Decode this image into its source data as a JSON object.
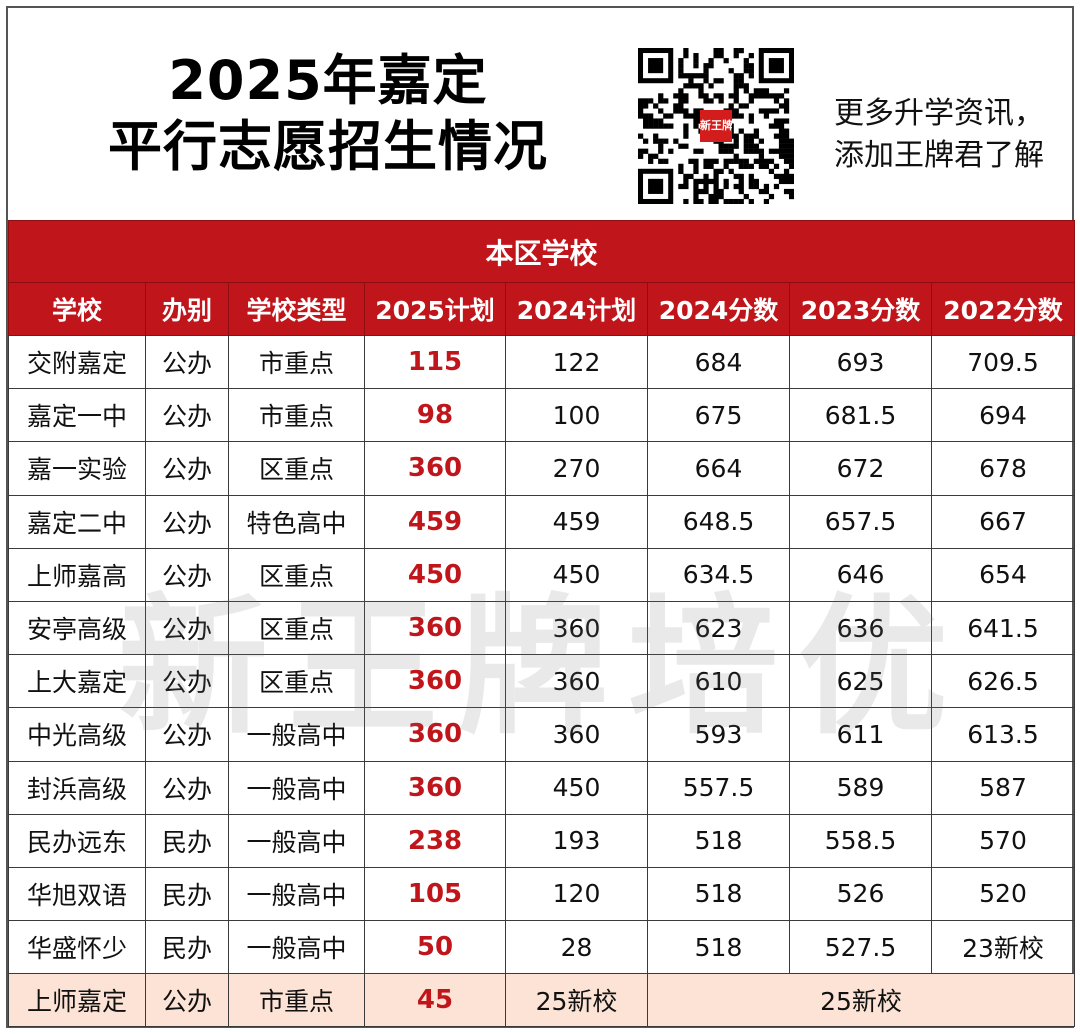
{
  "header": {
    "title_line1": "2025年嘉定",
    "title_line2": "平行志愿招生情况",
    "promo_line1": "更多升学资讯，",
    "promo_line2": "添加王牌君了解",
    "qr_badge": "新王牌"
  },
  "colors": {
    "accent": "#c0161b",
    "last_row_bg": "#fde3d5"
  },
  "table": {
    "section_title": "本区学校",
    "columns": [
      "学校",
      "办别",
      "学校类型",
      "2025计划",
      "2024计划",
      "2024分数",
      "2023分数",
      "2022分数"
    ],
    "rows": [
      [
        "交附嘉定",
        "公办",
        "市重点",
        "115",
        "122",
        "684",
        "693",
        "709.5"
      ],
      [
        "嘉定一中",
        "公办",
        "市重点",
        "98",
        "100",
        "675",
        "681.5",
        "694"
      ],
      [
        "嘉一实验",
        "公办",
        "区重点",
        "360",
        "270",
        "664",
        "672",
        "678"
      ],
      [
        "嘉定二中",
        "公办",
        "特色高中",
        "459",
        "459",
        "648.5",
        "657.5",
        "667"
      ],
      [
        "上师嘉高",
        "公办",
        "区重点",
        "450",
        "450",
        "634.5",
        "646",
        "654"
      ],
      [
        "安亭高级",
        "公办",
        "区重点",
        "360",
        "360",
        "623",
        "636",
        "641.5"
      ],
      [
        "上大嘉定",
        "公办",
        "区重点",
        "360",
        "360",
        "610",
        "625",
        "626.5"
      ],
      [
        "中光高级",
        "公办",
        "一般高中",
        "360",
        "360",
        "593",
        "611",
        "613.5"
      ],
      [
        "封浜高级",
        "公办",
        "一般高中",
        "360",
        "450",
        "557.5",
        "589",
        "587"
      ],
      [
        "民办远东",
        "民办",
        "一般高中",
        "238",
        "193",
        "518",
        "558.5",
        "570"
      ],
      [
        "华旭双语",
        "民办",
        "一般高中",
        "105",
        "120",
        "518",
        "526",
        "520"
      ],
      [
        "华盛怀少",
        "民办",
        "一般高中",
        "50",
        "28",
        "518",
        "527.5",
        "23新校"
      ]
    ],
    "last_row": {
      "school": "上师嘉定",
      "type": "公办",
      "category": "市重点",
      "plan_2025": "45",
      "plan_2024": "25新校",
      "scores": "25新校"
    }
  },
  "watermark": "新王牌培优"
}
